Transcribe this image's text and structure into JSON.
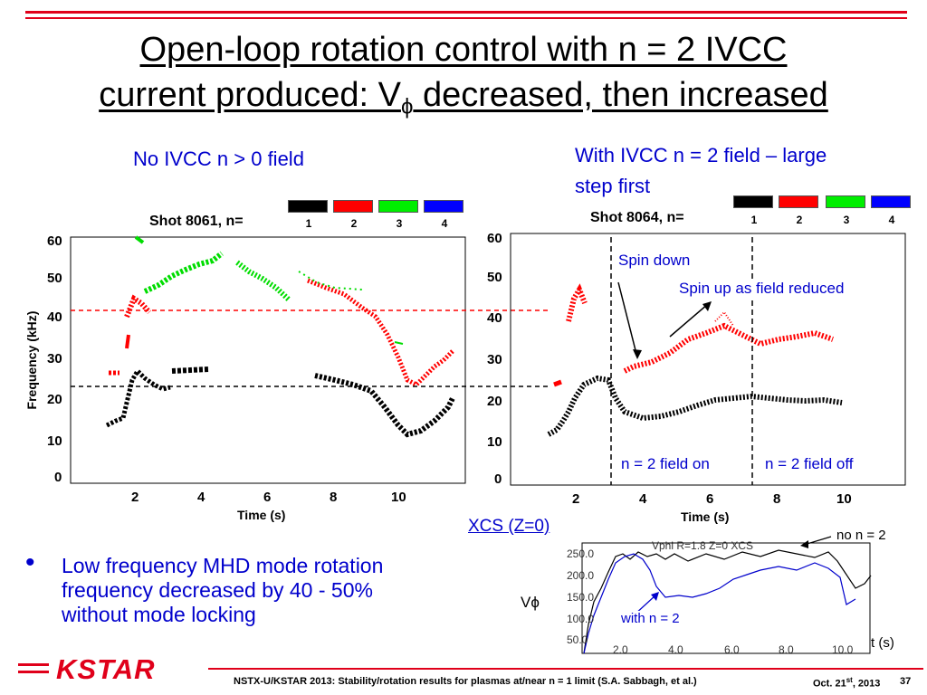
{
  "title": {
    "line1": "Open-loop rotation control with n = 2 IVCC",
    "line2_pre": "current produced: V",
    "line2_sub": "ϕ",
    "line2_post": " decreased, then increased"
  },
  "left_caption": "No IVCC n > 0 field",
  "right_caption_1": "With IVCC n = 2 field – large",
  "right_caption_2": "step first",
  "legend": {
    "numbers": [
      "1",
      "2",
      "3",
      "4"
    ],
    "colors": [
      "#000000",
      "#ff0000",
      "#00ee00",
      "#0000ff"
    ]
  },
  "left_plot": {
    "shot": "Shot 8061, n=",
    "ylabel": "Frequency (kHz)",
    "xlabel": "Time (s)",
    "yticks": [
      "60",
      "50",
      "40",
      "30",
      "20",
      "10",
      "0"
    ],
    "xticks": [
      "2",
      "4",
      "6",
      "8",
      "10"
    ]
  },
  "right_plot": {
    "shot": "Shot 8064, n=",
    "xlabel": "Time (s)",
    "yticks": [
      "60",
      "50",
      "40",
      "30",
      "20",
      "10",
      "0"
    ],
    "xticks": [
      "2",
      "4",
      "6",
      "8",
      "10"
    ],
    "annot_spin_down": "Spin down",
    "annot_spin_up": "Spin up as field reduced",
    "annot_field_on": "n = 2 field on",
    "annot_field_off": "n = 2 field off"
  },
  "inset": {
    "link": "XCS (Z=0)",
    "title": "Vphi R=1.8 Z=0 XCS",
    "ylabel": "Vϕ",
    "xlabel": "t (s)",
    "yticks": [
      "250.0",
      "200.0",
      "150.0",
      "100.0",
      "50.0"
    ],
    "xticks": [
      "2.0",
      "4.0",
      "6.0",
      "8.0",
      "10.0"
    ],
    "label_no_n2": "no n = 2",
    "label_with_n2": "with n = 2"
  },
  "bullet": {
    "marker": "•",
    "line1": "Low frequency MHD mode rotation",
    "line2": "frequency decreased by 40 - 50%",
    "line3": "without mode locking"
  },
  "footer": {
    "logo": "KSTAR",
    "text": "NSTX-U/KSTAR 2013: Stability/rotation results for plasmas at/near  n = 1 limit (S.A. Sabbagh, et al.)",
    "date_pre": "Oct. 21",
    "date_sup": "st",
    "date_post": ", 2013",
    "page": "37"
  }
}
